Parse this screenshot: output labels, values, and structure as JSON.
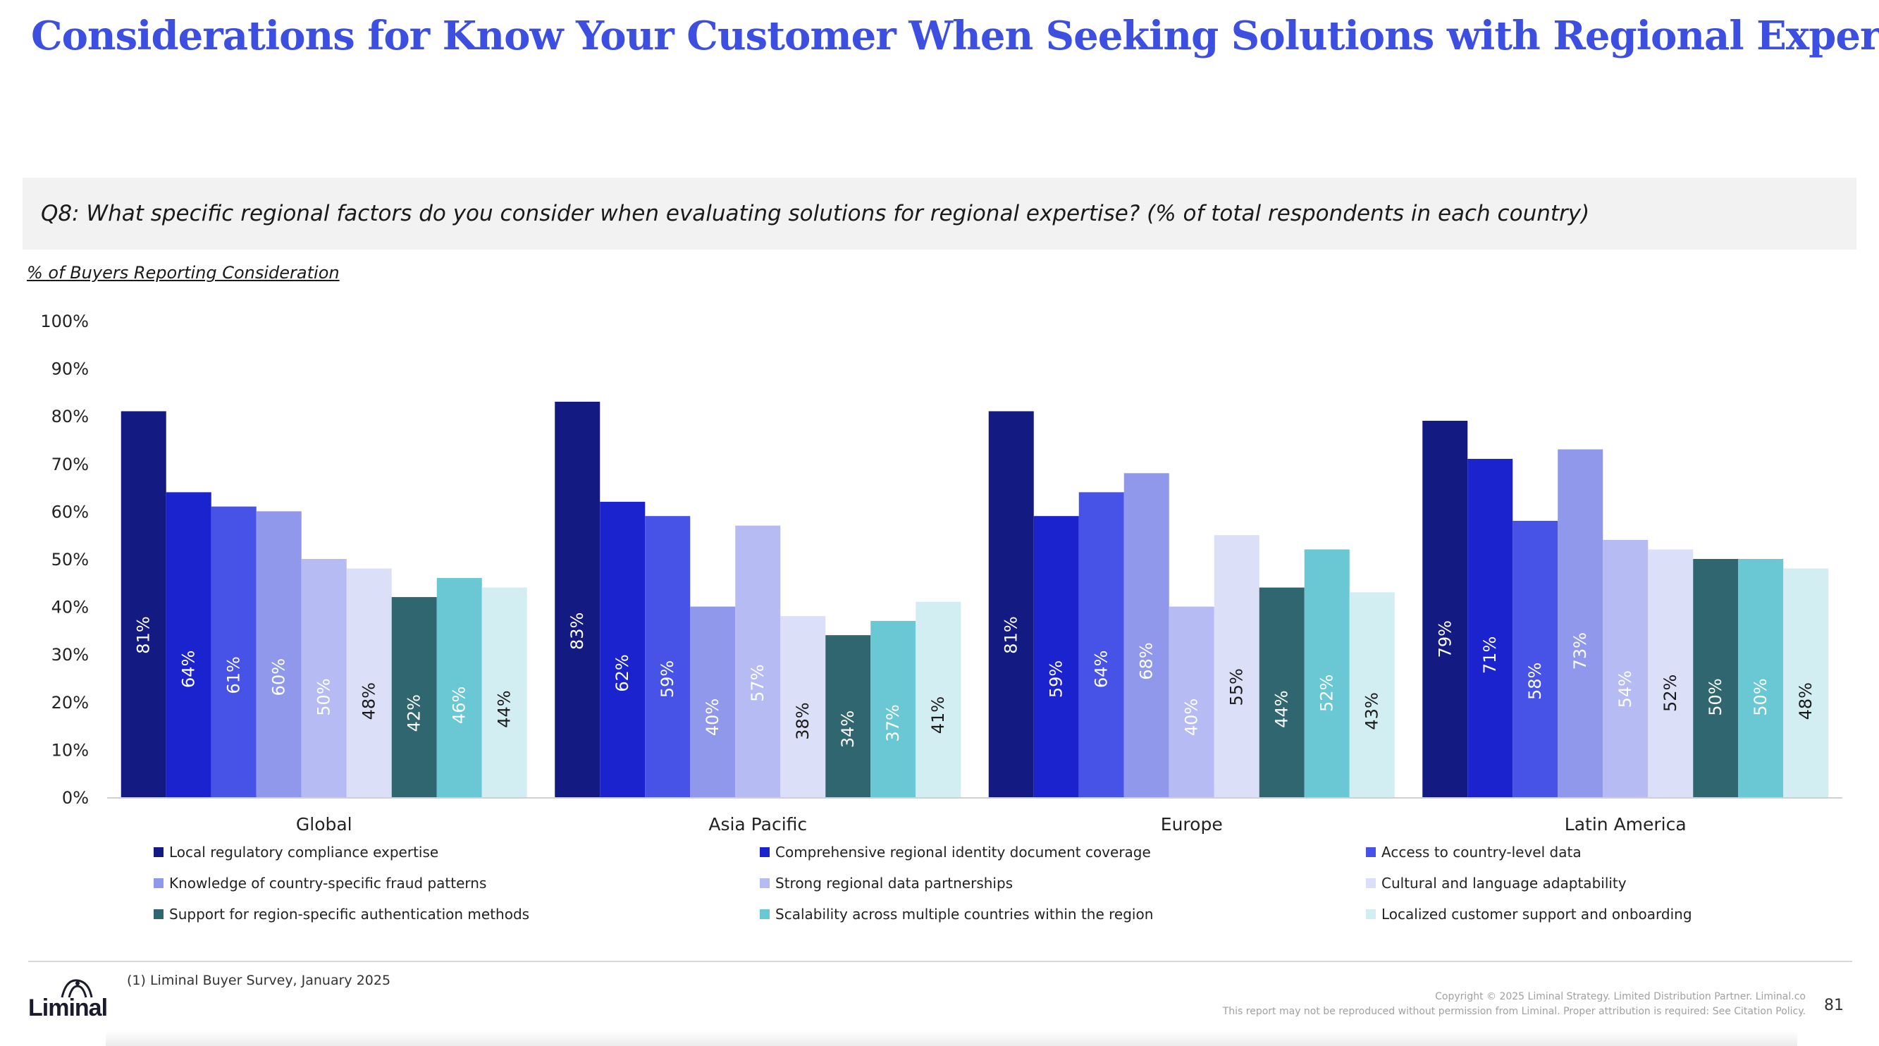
{
  "header": {
    "title": "Considerations for Know Your Customer When Seeking Solutions with Regional Expertise"
  },
  "question": {
    "text": "Q8: What specific regional factors do you consider when evaluating solutions for regional expertise? (% of total respondents in each country)"
  },
  "chart_data": {
    "type": "bar",
    "title": "",
    "ylabel": "% of Buyers Reporting Consideration",
    "xlabel": "",
    "ylim": [
      0,
      100
    ],
    "yticks": [
      "0%",
      "10%",
      "20%",
      "30%",
      "40%",
      "50%",
      "60%",
      "70%",
      "80%",
      "90%",
      "100%"
    ],
    "categories": [
      "Global",
      "Asia Pacific",
      "Europe",
      "Latin America"
    ],
    "legend_position": "bottom",
    "grid": false,
    "series": [
      {
        "name": "Local regulatory compliance expertise",
        "color": "#131a82",
        "label_color": "#ffffff",
        "values": [
          81,
          83,
          81,
          79
        ]
      },
      {
        "name": "Comprehensive regional identity document coverage",
        "color": "#1b23cf",
        "label_color": "#ffffff",
        "values": [
          64,
          62,
          59,
          71
        ]
      },
      {
        "name": "Access to country-level data",
        "color": "#4653e6",
        "label_color": "#ffffff",
        "values": [
          61,
          59,
          64,
          58
        ]
      },
      {
        "name": "Knowledge of country-specific fraud patterns",
        "color": "#8f98ea",
        "label_color": "#ffffff",
        "values": [
          60,
          40,
          68,
          73
        ]
      },
      {
        "name": "Strong regional data partnerships",
        "color": "#b6bbf3",
        "label_color": "#ffffff",
        "values": [
          50,
          57,
          40,
          54
        ]
      },
      {
        "name": "Cultural and language adaptability",
        "color": "#dcdff8",
        "label_color": "#1a1a1a",
        "values": [
          48,
          38,
          55,
          52
        ]
      },
      {
        "name": "Support for region-specific authentication methods",
        "color": "#2f6670",
        "label_color": "#ffffff",
        "values": [
          42,
          34,
          44,
          50
        ]
      },
      {
        "name": "Scalability across multiple countries within the region",
        "color": "#69c8d4",
        "label_color": "#ffffff",
        "values": [
          46,
          37,
          52,
          50
        ]
      },
      {
        "name": "Localized customer support and onboarding",
        "color": "#d2eef2",
        "label_color": "#1a1a1a",
        "values": [
          44,
          41,
          43,
          48
        ]
      }
    ]
  },
  "footer": {
    "footnote": "(1) Liminal Buyer Survey, January 2025",
    "logo": "Liminal",
    "copyright_line1": "Copyright © 2025 Liminal Strategy. Limited Distribution Partner. Liminal.co",
    "copyright_line2": "This report may not be reproduced without permission from Liminal. Proper attribution is required: See Citation Policy.",
    "page_number": "81"
  }
}
